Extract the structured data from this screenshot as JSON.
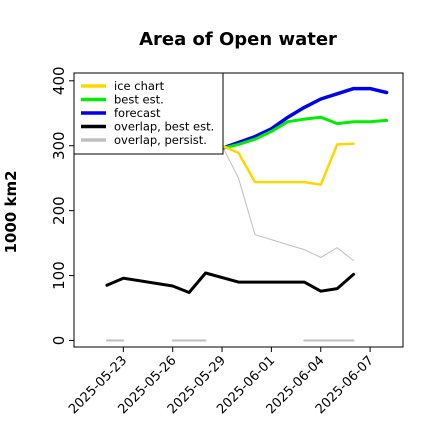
{
  "chart_data": {
    "type": "line",
    "title": "Area of Open water",
    "xlabel": "",
    "ylabel": "1000 km2",
    "ylim": [
      -10,
      412
    ],
    "xlim": [
      "2025-05-20",
      "2025-06-09"
    ],
    "yticks": [
      0,
      100,
      200,
      300,
      400
    ],
    "xticks": [
      "2025-05-23",
      "2025-05-26",
      "2025-05-29",
      "2025-06-01",
      "2025-06-04",
      "2025-06-07"
    ],
    "xtick_colors": [
      "#000000",
      "#000000",
      "#228B22",
      "#000000",
      "#000000",
      "#000000"
    ],
    "grid": false,
    "legend_position": "top-left",
    "series": [
      {
        "name": "ice chart",
        "color": "#FFD700",
        "segments": [
          [
            [
              "2025-05-29",
              300
            ],
            [
              "2025-05-30",
              289
            ],
            [
              "2025-05-31",
              244
            ],
            [
              "2025-06-03",
              244
            ],
            [
              "2025-06-04",
              240
            ],
            [
              "2025-06-05",
              302
            ],
            [
              "2025-06-06",
              303
            ]
          ]
        ]
      },
      {
        "name": "best est.",
        "color": "#00EE00",
        "segments": [
          [
            [
              "2025-05-29",
              296
            ],
            [
              "2025-05-30",
              302
            ],
            [
              "2025-05-31",
              310
            ],
            [
              "2025-06-01",
              322
            ],
            [
              "2025-06-02",
              337
            ],
            [
              "2025-06-03",
              341
            ],
            [
              "2025-06-04",
              344
            ],
            [
              "2025-06-05",
              334
            ],
            [
              "2025-06-06",
              337
            ],
            [
              "2025-06-07",
              337
            ],
            [
              "2025-06-08",
              339
            ]
          ]
        ]
      },
      {
        "name": "forecast",
        "color": "#0000EE",
        "segments": [
          [
            [
              "2025-05-29",
              296
            ],
            [
              "2025-05-30",
              305
            ],
            [
              "2025-05-31",
              314
            ],
            [
              "2025-06-01",
              326
            ],
            [
              "2025-06-02",
              344
            ],
            [
              "2025-06-03",
              359
            ],
            [
              "2025-06-04",
              372
            ],
            [
              "2025-06-05",
              380
            ],
            [
              "2025-06-06",
              388
            ],
            [
              "2025-06-07",
              388
            ],
            [
              "2025-06-08",
              382
            ]
          ]
        ]
      },
      {
        "name": "overlap, best est.",
        "color": "#000000",
        "segments": [
          [
            [
              "2025-05-22",
              85
            ],
            [
              "2025-05-23",
              96
            ],
            [
              "2025-05-26",
              84
            ],
            [
              "2025-05-27",
              74
            ],
            [
              "2025-05-28",
              104
            ],
            [
              "2025-05-30",
              90
            ],
            [
              "2025-06-03",
              90
            ],
            [
              "2025-06-04",
              76
            ],
            [
              "2025-06-05",
              80
            ],
            [
              "2025-06-06",
              102
            ]
          ]
        ]
      },
      {
        "name": "overlap, persist.",
        "color": "#BFBFBF",
        "segments": [
          [
            [
              "2025-05-29",
              300
            ],
            [
              "2025-05-30",
              250
            ],
            [
              "2025-05-31",
              163
            ],
            [
              "2025-06-03",
              140
            ],
            [
              "2025-06-04",
              128
            ],
            [
              "2025-06-05",
              143
            ],
            [
              "2025-06-06",
              123
            ]
          ],
          [
            [
              "2025-05-22",
              0
            ],
            [
              "2025-05-23",
              0
            ]
          ],
          [
            [
              "2025-05-26",
              0
            ],
            [
              "2025-05-28",
              0
            ]
          ],
          [
            [
              "2025-06-03",
              0
            ],
            [
              "2025-06-06",
              0
            ]
          ]
        ]
      }
    ]
  }
}
